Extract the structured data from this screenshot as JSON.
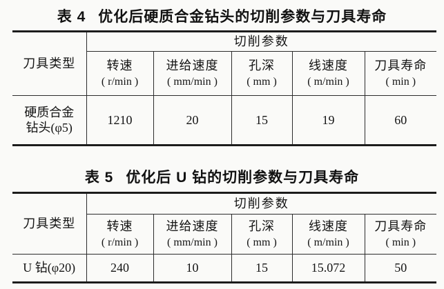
{
  "page": {
    "background": "#fafaf8",
    "text_color": "#161616",
    "rule_color": "#1c1c1c"
  },
  "tables": [
    {
      "title_label": "表 4",
      "title_text": "优化后硬质合金钻头的切削参数与刀具寿命",
      "corner_header": "刀具类型",
      "group_header": "切削参数",
      "columns": [
        {
          "name": "转速",
          "unit": "( r/min )"
        },
        {
          "name": "进给速度",
          "unit": "( mm/min )"
        },
        {
          "name": "孔深",
          "unit": "( mm )"
        },
        {
          "name": "线速度",
          "unit": "( m/min )"
        },
        {
          "name": "刀具寿命",
          "unit": "( min )"
        }
      ],
      "row": {
        "tool_lines": [
          "硬质合金",
          "钻头(φ5)"
        ],
        "values": [
          "1210",
          "20",
          "15",
          "19",
          "60"
        ]
      }
    },
    {
      "title_label": "表 5",
      "title_text": "优化后 U 钻的切削参数与刀具寿命",
      "corner_header": "刀具类型",
      "group_header": "切削参数",
      "columns": [
        {
          "name": "转速",
          "unit": "( r/min )"
        },
        {
          "name": "进给速度",
          "unit": "( mm/min )"
        },
        {
          "name": "孔深",
          "unit": "( mm )"
        },
        {
          "name": "线速度",
          "unit": "( m/min )"
        },
        {
          "name": "刀具寿命",
          "unit": "( min )"
        }
      ],
      "row": {
        "tool_lines": [
          "U 钻(φ20)"
        ],
        "values": [
          "240",
          "10",
          "15",
          "15.072",
          "50"
        ]
      }
    }
  ]
}
